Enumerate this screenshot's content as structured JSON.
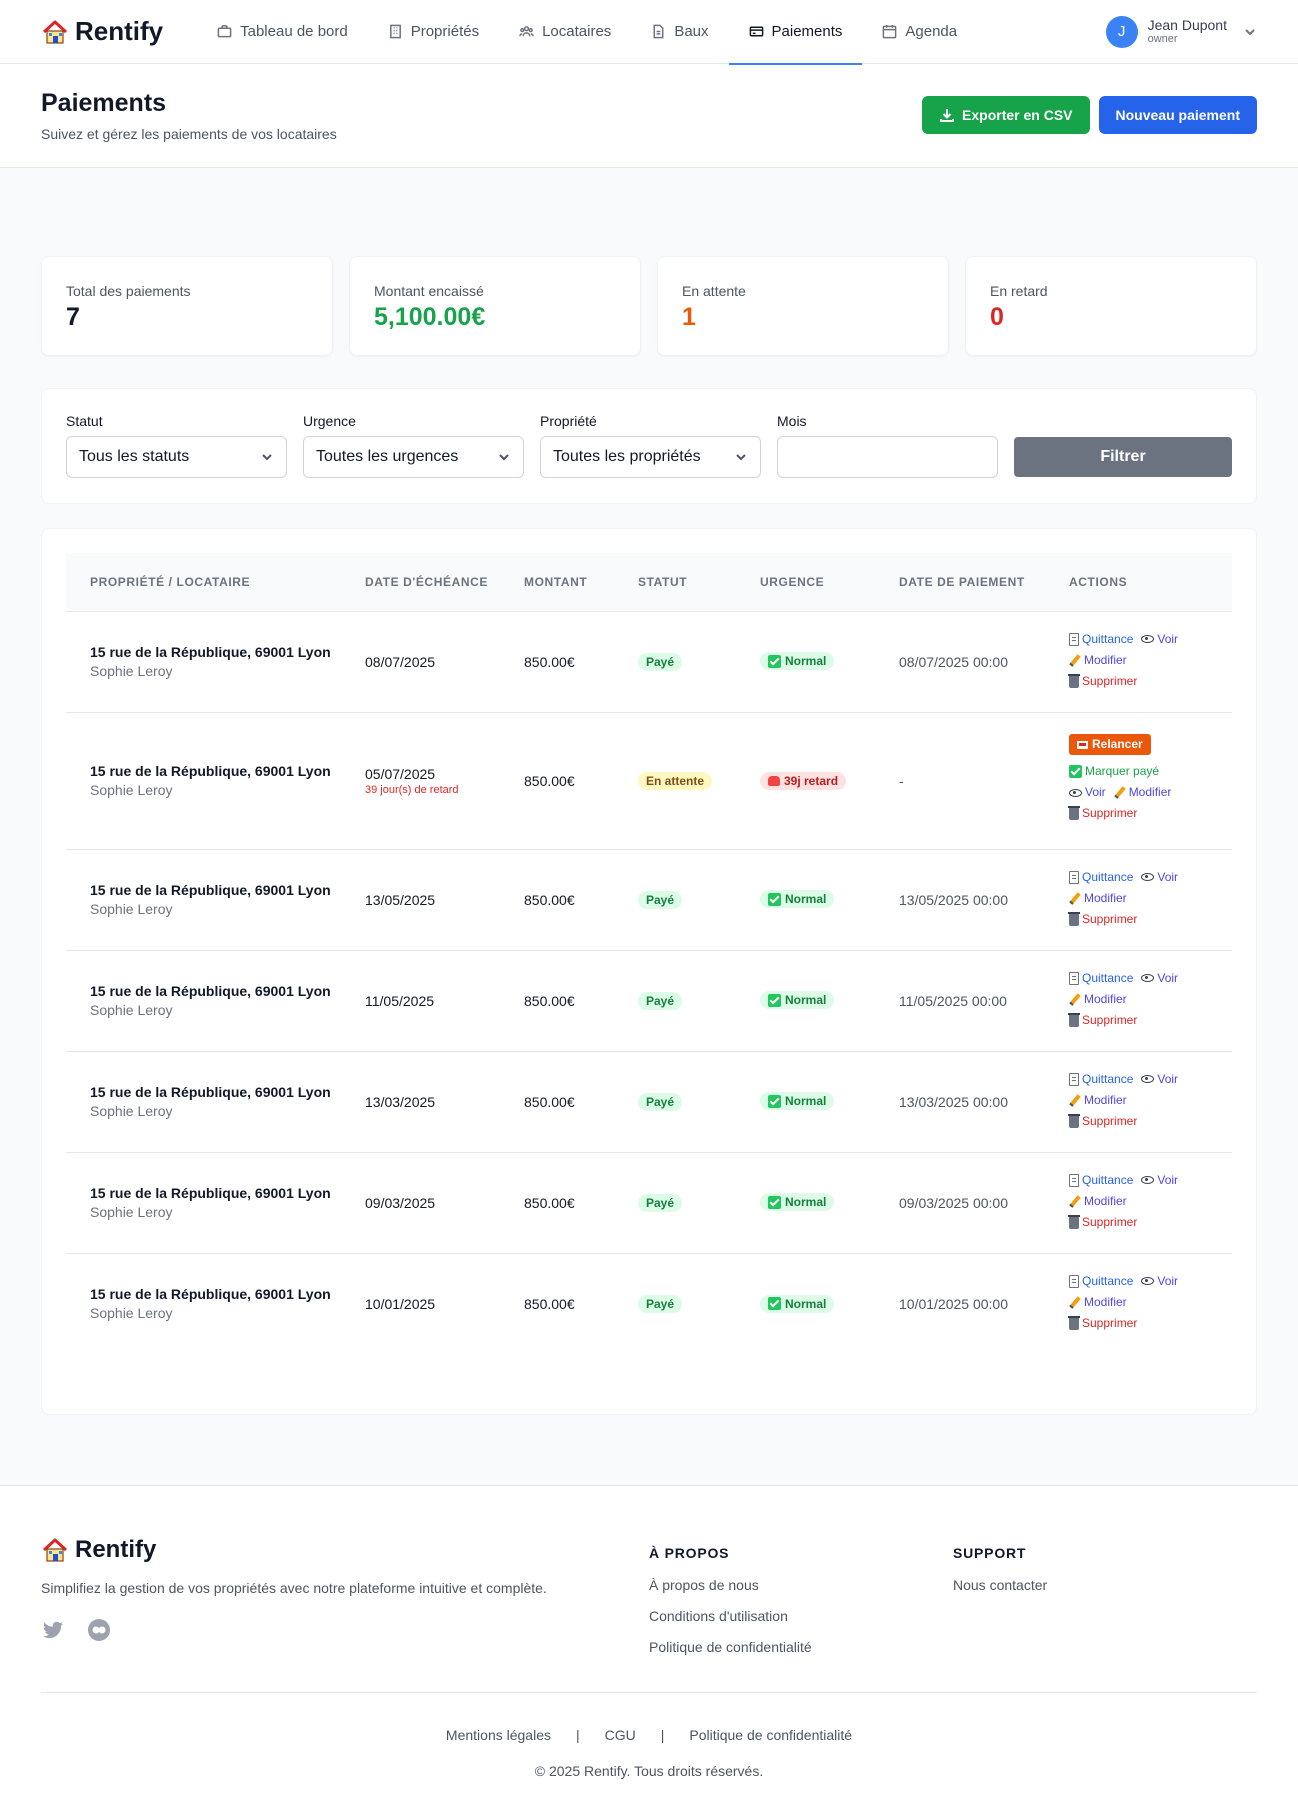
{
  "app": {
    "name": "Rentify"
  },
  "nav": [
    {
      "label": "Tableau de bord",
      "icon": "briefcase-icon",
      "active": false
    },
    {
      "label": "Propriétés",
      "icon": "building-icon",
      "active": false
    },
    {
      "label": "Locataires",
      "icon": "users-icon",
      "active": false
    },
    {
      "label": "Baux",
      "icon": "document-icon",
      "active": false
    },
    {
      "label": "Paiements",
      "icon": "credit-card-icon",
      "active": true
    },
    {
      "label": "Agenda",
      "icon": "calendar-icon",
      "active": false
    }
  ],
  "user": {
    "initial": "J",
    "name": "Jean Dupont",
    "role": "owner"
  },
  "page": {
    "title": "Paiements",
    "subtitle": "Suivez et gérez les paiements de vos locataires",
    "export_label": "Exporter en CSV",
    "new_label": "Nouveau paiement"
  },
  "stats": [
    {
      "label": "Total des paiements",
      "value": "7",
      "color": "#111827"
    },
    {
      "label": "Montant encaissé",
      "value": "5,100.00€",
      "color": "#16a34a"
    },
    {
      "label": "En attente",
      "value": "1",
      "color": "#ea580c"
    },
    {
      "label": "En retard",
      "value": "0",
      "color": "#dc2626"
    }
  ],
  "filters": {
    "status_label": "Statut",
    "status_value": "Tous les statuts",
    "urgency_label": "Urgence",
    "urgency_value": "Toutes les urgences",
    "property_label": "Propriété",
    "property_value": "Toutes les propriétés",
    "month_label": "Mois",
    "month_value": "",
    "submit_label": "Filtrer"
  },
  "table": {
    "headers": [
      "Propriété / Locataire",
      "Date d'échéance",
      "Montant",
      "Statut",
      "Urgence",
      "Date de paiement",
      "Actions"
    ],
    "action_labels": {
      "receipt": "Quittance",
      "view": "Voir",
      "edit": "Modifier",
      "delete": "Supprimer",
      "remind": "Relancer",
      "mark_paid": "Marquer payé"
    },
    "rows": [
      {
        "property": "15 rue de la République, 69001 Lyon",
        "tenant": "Sophie Leroy",
        "due_date": "08/07/2025",
        "late_note": "",
        "amount": "850.00€",
        "status": "Payé",
        "urgency": "Normal",
        "paid_at": "08/07/2025 00:00",
        "kind": "paid"
      },
      {
        "property": "15 rue de la République, 69001 Lyon",
        "tenant": "Sophie Leroy",
        "due_date": "05/07/2025",
        "late_note": "39 jour(s) de retard",
        "amount": "850.00€",
        "status": "En attente",
        "urgency": "39j retard",
        "paid_at": "-",
        "kind": "pending"
      },
      {
        "property": "15 rue de la République, 69001 Lyon",
        "tenant": "Sophie Leroy",
        "due_date": "13/05/2025",
        "late_note": "",
        "amount": "850.00€",
        "status": "Payé",
        "urgency": "Normal",
        "paid_at": "13/05/2025 00:00",
        "kind": "paid"
      },
      {
        "property": "15 rue de la République, 69001 Lyon",
        "tenant": "Sophie Leroy",
        "due_date": "11/05/2025",
        "late_note": "",
        "amount": "850.00€",
        "status": "Payé",
        "urgency": "Normal",
        "paid_at": "11/05/2025 00:00",
        "kind": "paid"
      },
      {
        "property": "15 rue de la République, 69001 Lyon",
        "tenant": "Sophie Leroy",
        "due_date": "13/03/2025",
        "late_note": "",
        "amount": "850.00€",
        "status": "Payé",
        "urgency": "Normal",
        "paid_at": "13/03/2025 00:00",
        "kind": "paid"
      },
      {
        "property": "15 rue de la République, 69001 Lyon",
        "tenant": "Sophie Leroy",
        "due_date": "09/03/2025",
        "late_note": "",
        "amount": "850.00€",
        "status": "Payé",
        "urgency": "Normal",
        "paid_at": "09/03/2025 00:00",
        "kind": "paid"
      },
      {
        "property": "15 rue de la République, 69001 Lyon",
        "tenant": "Sophie Leroy",
        "due_date": "10/01/2025",
        "late_note": "",
        "amount": "850.00€",
        "status": "Payé",
        "urgency": "Normal",
        "paid_at": "10/01/2025 00:00",
        "kind": "paid"
      }
    ]
  },
  "footer": {
    "brand": "Rentify",
    "description": "Simplifiez la gestion de vos propriétés avec notre plateforme intuitive et complète.",
    "about_title": "À PROPOS",
    "about_links": [
      "À propos de nous",
      "Conditions d'utilisation",
      "Politique de confidentialité"
    ],
    "support_title": "SUPPORT",
    "support_links": [
      "Nous contacter"
    ],
    "legal_links": [
      "Mentions légales",
      "CGU",
      "Politique de confidentialité"
    ],
    "copyright": "© 2025 Rentify. Tous droits réservés."
  }
}
